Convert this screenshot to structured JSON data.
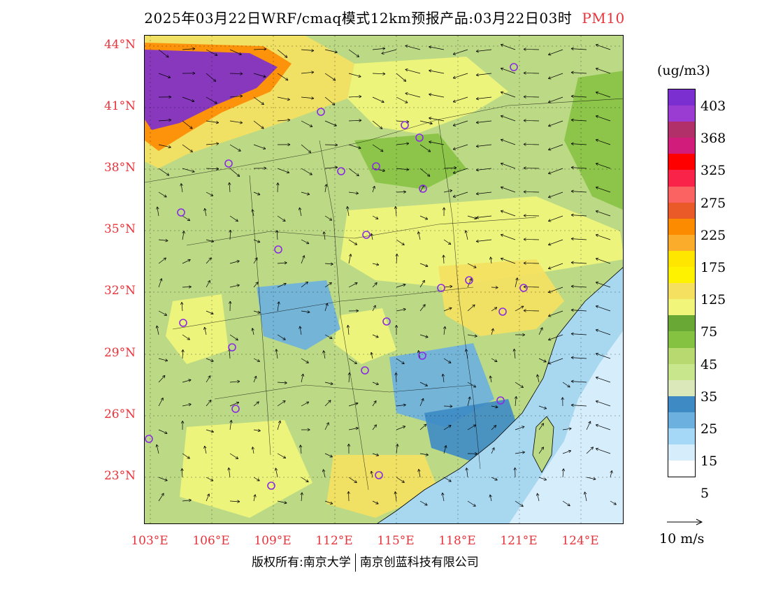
{
  "title": {
    "main": "2025年03月22日WRF/cmaq模式12km预报产品:03月22日03时",
    "pollutant": "PM10"
  },
  "map": {
    "lat_labels": [
      "44°N",
      "41°N",
      "38°N",
      "35°N",
      "32°N",
      "29°N",
      "26°N",
      "23°N"
    ],
    "lon_labels": [
      "103°E",
      "106°E",
      "109°E",
      "112°E",
      "115°E",
      "118°E",
      "121°E",
      "124°E"
    ],
    "colors": {
      "sea": "#a8d8f0",
      "land_base": "#bcd985",
      "axis_label": "#e8333a",
      "station_marker": "#8a2be2"
    }
  },
  "legend": {
    "unit": "(ug/m3)",
    "labels": [
      "403",
      "368",
      "325",
      "275",
      "225",
      "175",
      "125",
      "75",
      "45",
      "35",
      "25",
      "15",
      "5"
    ],
    "colors": [
      "#7b2fd0",
      "#9a3bd1",
      "#b2306a",
      "#d21c7c",
      "#ff0000",
      "#f9234a",
      "#fb6363",
      "#ea5a28",
      "#fd8b00",
      "#fbac2a",
      "#ffe600",
      "#fff200",
      "#f5e060",
      "#f1f67b",
      "#6aa835",
      "#86c242",
      "#b8d870",
      "#c8e68c",
      "#dbe9ba",
      "#3d8ac5",
      "#6cb0e0",
      "#a4d8f6",
      "#d6eefb",
      "#ffffff"
    ]
  },
  "reference_vector": {
    "label": "10 m/s"
  },
  "credit": {
    "left": "版权所有:南京大学",
    "right": "南京创蓝科技有限公司"
  }
}
